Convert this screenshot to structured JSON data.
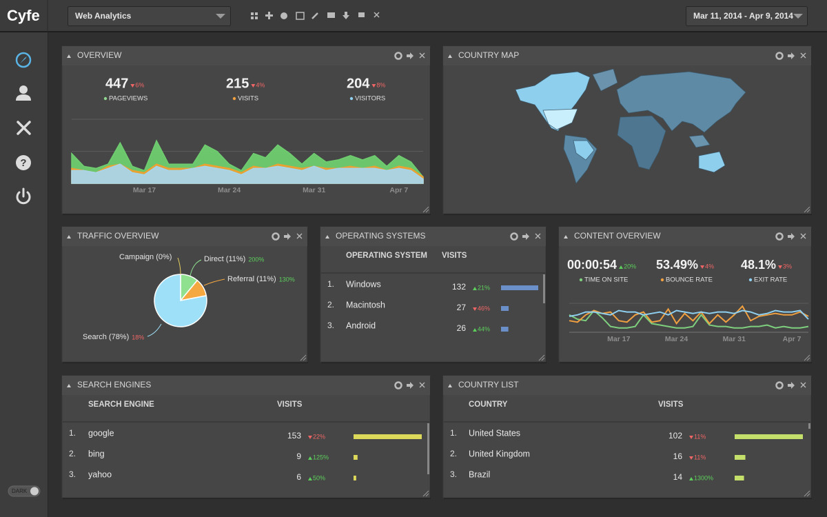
{
  "header": {
    "logo": "Cyfe",
    "dashboard": "Web Analytics",
    "date_range": "Mar 11, 2014 - Apr 9, 2014"
  },
  "sidebar": {
    "toggle": "DARK"
  },
  "overview": {
    "title": "OVERVIEW",
    "stats": [
      {
        "value": 447,
        "change": "6%",
        "direction": "down",
        "label": "PAGEVIEWS",
        "color": "#8fd68f"
      },
      {
        "value": 215,
        "change": "4%",
        "direction": "down",
        "label": "VISITS",
        "color": "#f0a040"
      },
      {
        "value": 204,
        "change": "8%",
        "direction": "down",
        "label": "VISITORS",
        "color": "#8fd0f0"
      }
    ],
    "chart": {
      "type": "area",
      "categories": [
        null,
        null,
        null,
        null,
        null,
        null,
        "Mar 17",
        null,
        null,
        null,
        null,
        null,
        null,
        "Mar 24",
        null,
        null,
        null,
        null,
        null,
        null,
        "Mar 31",
        null,
        null,
        null,
        null,
        null,
        null,
        "Apr 7",
        null,
        null
      ],
      "ylim": [
        0,
        30
      ],
      "gridlines": [
        15,
        30
      ],
      "series": [
        {
          "color": "#6fce6f",
          "values": [
            14,
            8,
            7,
            9,
            19,
            8,
            6,
            20,
            9,
            9,
            9,
            18,
            15,
            9,
            6,
            14,
            12,
            18,
            14,
            9,
            14,
            10,
            11,
            13,
            11,
            13,
            8,
            13,
            10,
            3
          ]
        },
        {
          "color": "#f0a030",
          "values": [
            7,
            6,
            5,
            8,
            9,
            6,
            5,
            9,
            7,
            7,
            7,
            9,
            8,
            7,
            5,
            8,
            7,
            9,
            8,
            7,
            8,
            7,
            7,
            8,
            7,
            8,
            6,
            8,
            7,
            3
          ]
        },
        {
          "color": "#a9d5ea",
          "values": [
            6,
            6,
            5,
            7,
            9,
            5,
            4,
            8,
            6,
            6,
            7,
            8,
            7,
            6,
            4,
            7,
            7,
            8,
            7,
            6,
            8,
            6,
            7,
            7,
            7,
            7,
            6,
            7,
            6,
            2
          ]
        }
      ]
    }
  },
  "country_map": {
    "title": "COUNTRY MAP"
  },
  "traffic_overview": {
    "title": "TRAFFIC OVERVIEW",
    "chart": {
      "type": "pie",
      "values": [
        0,
        11,
        11,
        78
      ],
      "value_labels": [
        "Campaign (0%)",
        "Direct (11%)",
        "Referral (11%)",
        "Search (78%)"
      ],
      "changes": [
        null,
        "200%",
        "130%",
        "18%"
      ],
      "directions": [
        null,
        "up",
        "up",
        "down"
      ],
      "colors": [
        "#e8d060",
        "#8fe08f",
        "#f5a840",
        "#9ee0f8"
      ]
    }
  },
  "operating_systems": {
    "title": "OPERATING SYSTEMS",
    "columns": [
      "OPERATING SYSTEM",
      "VISITS"
    ],
    "bar_color": "#6b8fc9",
    "rows": [
      {
        "rank": "1.",
        "name": "Windows",
        "visits": 132,
        "change": "21%",
        "direction": "up"
      },
      {
        "rank": "2.",
        "name": "Macintosh",
        "visits": 27,
        "change": "46%",
        "direction": "down"
      },
      {
        "rank": "3.",
        "name": "Android",
        "visits": 26,
        "change": "44%",
        "direction": "up"
      }
    ]
  },
  "content_overview": {
    "title": "CONTENT OVERVIEW",
    "stats": [
      {
        "value": "00:00:54",
        "change": "20%",
        "direction": "up",
        "label": "TIME ON SITE",
        "color": "#7ed07e"
      },
      {
        "value": "53.49%",
        "change": "4%",
        "direction": "down",
        "label": "BOUNCE RATE",
        "color": "#f0a040"
      },
      {
        "value": "48.1%",
        "change": "3%",
        "direction": "down",
        "label": "EXIT RATE",
        "color": "#8fd0f0"
      }
    ],
    "chart": {
      "type": "line",
      "categories": [
        null,
        null,
        null,
        null,
        null,
        null,
        "Mar 17",
        null,
        null,
        null,
        null,
        null,
        null,
        "Mar 24",
        null,
        null,
        null,
        null,
        null,
        null,
        "Mar 31",
        null,
        null,
        null,
        null,
        null,
        null,
        "Apr 7",
        null,
        null
      ],
      "ylim": [
        0,
        100
      ],
      "gridlines": [
        100
      ],
      "series": [
        {
          "color": "#7ed07e",
          "values": [
            60,
            45,
            40,
            75,
            50,
            20,
            15,
            15,
            20,
            60,
            30,
            25,
            20,
            15,
            15,
            20,
            60,
            25,
            20,
            20,
            15,
            15,
            20,
            20,
            25,
            15,
            20,
            15,
            15,
            20
          ]
        },
        {
          "color": "#f0a040",
          "values": [
            40,
            35,
            60,
            75,
            65,
            70,
            40,
            35,
            60,
            70,
            35,
            40,
            80,
            30,
            65,
            40,
            70,
            30,
            60,
            35,
            60,
            90,
            40,
            55,
            60,
            65,
            60,
            60,
            70,
            55
          ]
        },
        {
          "color": "#8fd0f0",
          "values": [
            55,
            60,
            70,
            70,
            65,
            60,
            75,
            70,
            70,
            60,
            65,
            70,
            60,
            75,
            70,
            65,
            70,
            65,
            70,
            70,
            65,
            75,
            70,
            60,
            65,
            75,
            70,
            70,
            75,
            45
          ]
        }
      ]
    }
  },
  "search_engines": {
    "title": "SEARCH ENGINES",
    "columns": [
      "SEARCH ENGINE",
      "VISITS"
    ],
    "bar_color": "#dcd85a",
    "rows": [
      {
        "rank": "1.",
        "name": "google",
        "visits": 153,
        "change": "22%",
        "direction": "down"
      },
      {
        "rank": "2.",
        "name": "bing",
        "visits": 9,
        "change": "125%",
        "direction": "up"
      },
      {
        "rank": "3.",
        "name": "yahoo",
        "visits": 6,
        "change": "50%",
        "direction": "up"
      }
    ]
  },
  "country_list": {
    "title": "COUNTRY LIST",
    "columns": [
      "COUNTRY",
      "VISITS"
    ],
    "bar_color": "#c4e06a",
    "rows": [
      {
        "rank": "1.",
        "name": "United States",
        "visits": 102,
        "change": "11%",
        "direction": "down"
      },
      {
        "rank": "2.",
        "name": "United Kingdom",
        "visits": 16,
        "change": "11%",
        "direction": "down"
      },
      {
        "rank": "3.",
        "name": "Brazil",
        "visits": 14,
        "change": "1300%",
        "direction": "up"
      }
    ]
  }
}
